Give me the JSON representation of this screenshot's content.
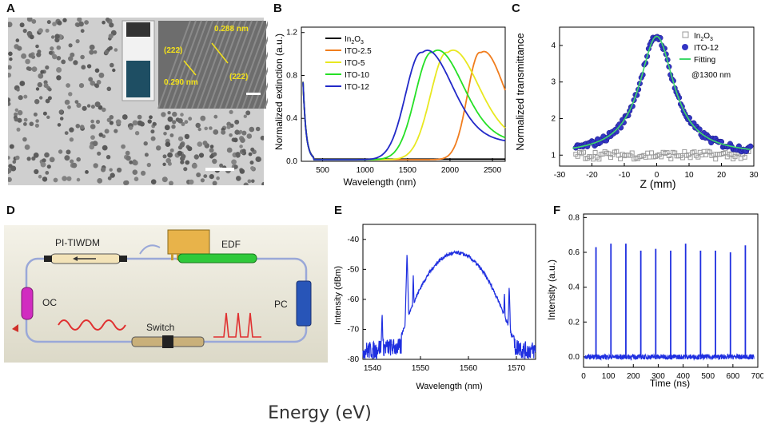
{
  "footer_text": "Energy (eV)",
  "panels": {
    "A": {
      "letter": "A",
      "d1": "0.288 nm",
      "d2": "0.290 nm",
      "plane1": "(222)",
      "plane2": "(222)"
    },
    "D": {
      "letter": "D",
      "labels": [
        "PI-TIWDM",
        "EDF",
        "OC",
        "Switch",
        "PC"
      ]
    }
  },
  "chart_data": [
    {
      "id": "B",
      "type": "line",
      "letter": "B",
      "xlabel": "Wavelength (nm)",
      "ylabel": "Normalized extinction (a.u.)",
      "xlim": [
        250,
        2650
      ],
      "ylim": [
        0,
        1.25
      ],
      "xticks": [
        500,
        1000,
        1500,
        2000,
        2500
      ],
      "yticks": [
        0.0,
        0.4,
        0.8,
        1.2
      ],
      "series": [
        {
          "name": "In2O3",
          "color": "#000000",
          "peak": 0,
          "width": 0
        },
        {
          "name": "ITO-2.5",
          "color": "#f07d1e",
          "peak": 2350,
          "width": 330
        },
        {
          "name": "ITO-5",
          "color": "#e8e820",
          "peak": 1960,
          "width": 430
        },
        {
          "name": "ITO-10",
          "color": "#26e026",
          "peak": 1780,
          "width": 430
        },
        {
          "name": "ITO-12",
          "color": "#2229c8",
          "peak": 1660,
          "width": 420
        }
      ]
    },
    {
      "id": "C",
      "type": "scatter",
      "letter": "C",
      "xlabel": "Z (mm)",
      "ylabel": "Normalized transmittance",
      "xlim": [
        -30,
        30
      ],
      "ylim": [
        0.7,
        4.5
      ],
      "xticks": [
        -30,
        -20,
        -10,
        0,
        10,
        20,
        30
      ],
      "yticks": [
        1,
        2,
        3,
        4
      ],
      "legend": [
        "In2O3",
        "ITO-12",
        "Fitting"
      ],
      "annotation": "@1300 nm",
      "peak_value": 4.25,
      "baseline": 1.0,
      "fwhm_mm": 13
    },
    {
      "id": "E",
      "type": "line",
      "letter": "E",
      "xlabel": "Wavelength (nm)",
      "ylabel": "Intensity (dBm)",
      "xlim": [
        1538,
        1574
      ],
      "ylim": [
        -80,
        -35
      ],
      "xticks": [
        1540,
        1550,
        1560,
        1570
      ],
      "yticks": [
        -80,
        -70,
        -60,
        -50,
        -40
      ],
      "peak_wavelength": 1557.5,
      "peak_dbm": -44.5,
      "noise_floor_dbm": -76,
      "spikes": [
        [
          1542,
          -64
        ],
        [
          1547.2,
          -44
        ],
        [
          1548.5,
          -52
        ],
        [
          1567.5,
          -57
        ],
        [
          1568.5,
          -55
        ]
      ]
    },
    {
      "id": "F",
      "type": "line",
      "letter": "F",
      "xlabel": "Time (ns)",
      "ylabel": "Intensity (a.u.)",
      "xlim": [
        0,
        700
      ],
      "ylim": [
        -0.06,
        0.82
      ],
      "xticks": [
        0,
        100,
        200,
        300,
        400,
        500,
        600,
        700
      ],
      "yticks": [
        0.0,
        0.2,
        0.4,
        0.6,
        0.8
      ],
      "pulse_times": [
        50,
        110,
        170,
        230,
        290,
        350,
        410,
        470,
        530,
        590,
        650
      ],
      "pulse_heights": [
        0.63,
        0.65,
        0.65,
        0.61,
        0.62,
        0.61,
        0.65,
        0.61,
        0.61,
        0.6,
        0.64
      ]
    }
  ]
}
